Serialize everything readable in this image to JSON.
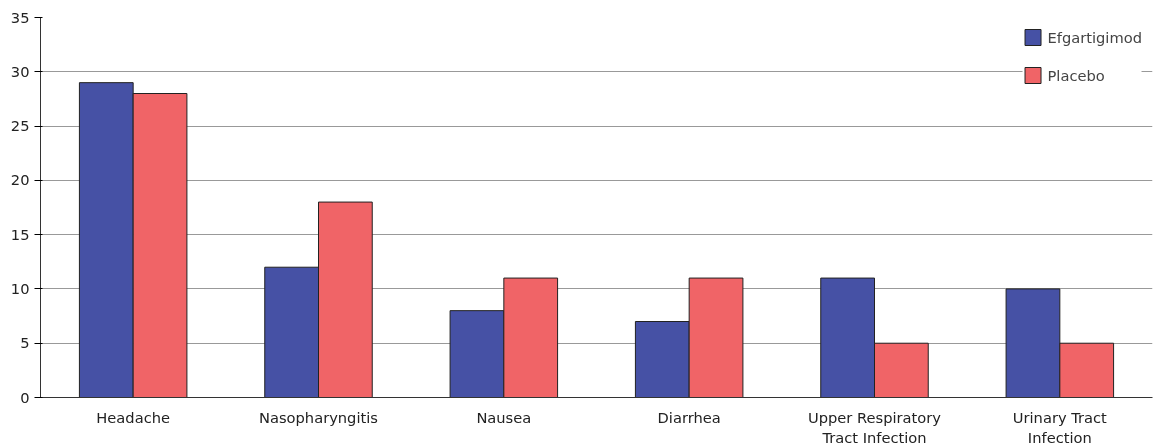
{
  "chart_data": {
    "type": "bar",
    "categories": [
      "Headache",
      "Nasopharyngitis",
      "Nausea",
      "Diarrhea",
      "Upper Respiratory\nTract Infection",
      "Urinary Tract\nInfection"
    ],
    "series": [
      {
        "name": "Efgartigimod",
        "color": "#4651a5",
        "values": [
          29,
          12,
          8,
          7,
          11,
          10
        ]
      },
      {
        "name": "Placebo",
        "color": "#f06467",
        "values": [
          28,
          18,
          11,
          11,
          5,
          5
        ]
      }
    ],
    "ylim": [
      0,
      35
    ],
    "yticks": [
      0,
      5,
      10,
      15,
      20,
      25,
      30,
      35
    ],
    "grid": "y",
    "legend": "top right"
  }
}
